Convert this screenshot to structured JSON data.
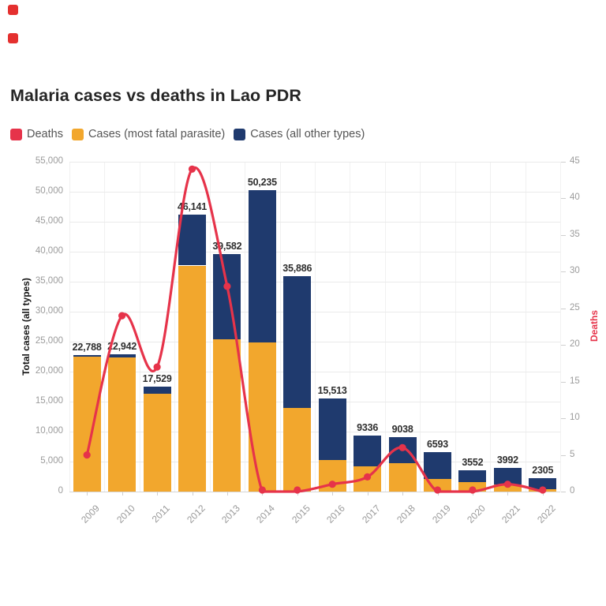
{
  "page": {
    "icons": [
      "broken-image-icon",
      "broken-image-icon"
    ]
  },
  "chart_data": {
    "type": "bar",
    "subtype": "stacked-columns-with-line-overlay",
    "title": "Malaria cases vs deaths in Lao PDR",
    "categories": [
      "2009",
      "2010",
      "2011",
      "2012",
      "2013",
      "2014",
      "2015",
      "2016",
      "2017",
      "2018",
      "2019",
      "2020",
      "2021",
      "2022"
    ],
    "series": [
      {
        "name": "Cases (most fatal parasite)",
        "type": "bar",
        "axis": "left",
        "color": "#F2A72D",
        "values": [
          22480,
          22380,
          16350,
          37700,
          25400,
          24900,
          14000,
          5300,
          4200,
          4700,
          2100,
          1600,
          1200,
          400
        ]
      },
      {
        "name": "Cases (all other types)",
        "type": "bar",
        "axis": "left",
        "color": "#1F3A6E",
        "values": [
          308,
          562,
          1179,
          8441,
          14182,
          25335,
          21886,
          10213,
          5136,
          4338,
          4493,
          1952,
          2792,
          1905
        ]
      },
      {
        "name": "Deaths",
        "type": "line",
        "axis": "right",
        "color": "#E6334A",
        "values": [
          5,
          24,
          17,
          44,
          28,
          0,
          0,
          1,
          2,
          6,
          0,
          0,
          1,
          0
        ]
      }
    ],
    "stack_total_labels": [
      "22,788",
      "22,942",
      "17,529",
      "46,141",
      "39,582",
      "50,235",
      "35,886",
      "15,513",
      "9336",
      "9038",
      "6593",
      "3552",
      "3992",
      "2305"
    ],
    "ylabel_left": "Total cases (all types)",
    "ylabel_right": "Deaths",
    "ylim_left": [
      0,
      55000
    ],
    "ylim_right": [
      0,
      45
    ],
    "yticks_left_labels": [
      "0",
      "5,000",
      "10,000",
      "15,000",
      "20,000",
      "25,000",
      "30,000",
      "35,000",
      "40,000",
      "45,000",
      "50,000",
      "55,000"
    ],
    "yticks_right_labels": [
      "0",
      "5",
      "10",
      "15",
      "20",
      "25",
      "30",
      "35",
      "40",
      "45"
    ],
    "grid": "horizontal-lines-with-faint-vertical-separators",
    "legend": {
      "position": "top-left",
      "items": [
        {
          "label": "Deaths",
          "color": "#E6334A",
          "icon": "legend-swatch-red"
        },
        {
          "label": "Cases (most fatal parasite)",
          "color": "#F2A72D",
          "icon": "legend-swatch-orange"
        },
        {
          "label": "Cases (all other types)",
          "color": "#1F3A6E",
          "icon": "legend-swatch-navy"
        }
      ]
    }
  }
}
